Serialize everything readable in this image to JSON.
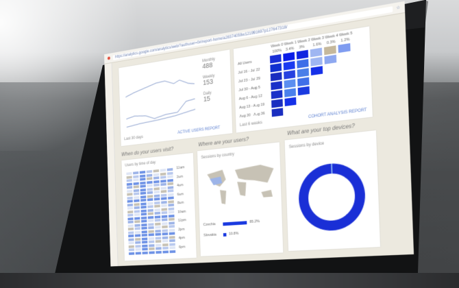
{
  "browser": {
    "url": "https://analytics.google.com/analytics/web/?authuser=0#/report-home/a28374059w121991697p127647318/"
  },
  "active_users": {
    "legend": [
      {
        "label": "Monthly",
        "value": "488"
      },
      {
        "label": "Weekly",
        "value": "153"
      },
      {
        "label": "Daily",
        "value": "15"
      }
    ],
    "link": "ACTIVE USERS REPORT",
    "range": "Last 30 days"
  },
  "cohort": {
    "columns": [
      "Week 0",
      "Week 1",
      "Week 2",
      "Week 3",
      "Week 4",
      "Week 5"
    ],
    "totals": [
      "100%",
      "3.4%",
      "3%",
      "1.6%",
      "0.3%",
      "1.2%"
    ],
    "rows": [
      "All Users",
      "Jul 16 - Jul 22",
      "Jul 23 - Jul 29",
      "Jul 30 - Aug 5",
      "Aug 6 - Aug 12",
      "Aug 13 - Aug 19",
      "Aug 20 - Aug 26"
    ],
    "link": "COHORT ANALYSIS REPORT",
    "range": "Last 6 weeks"
  },
  "visit": {
    "question": "When do your users visit?",
    "title": "Users by time of day",
    "hours": [
      "12am",
      "2am",
      "4am",
      "6am",
      "8am",
      "10am",
      "12pm",
      "2pm",
      "4pm",
      "6pm"
    ]
  },
  "where": {
    "question": "Where are your users?",
    "title": "Sessions by country",
    "countries": [
      {
        "name": "Czechia",
        "value": "85.2%",
        "pct": 85.2
      },
      {
        "name": "Slovakia",
        "value": "10.8%",
        "pct": 10.8
      }
    ]
  },
  "devices": {
    "question": "What are your top devices?",
    "title": "Sessions by device",
    "accent": "#1a2fd6"
  }
}
